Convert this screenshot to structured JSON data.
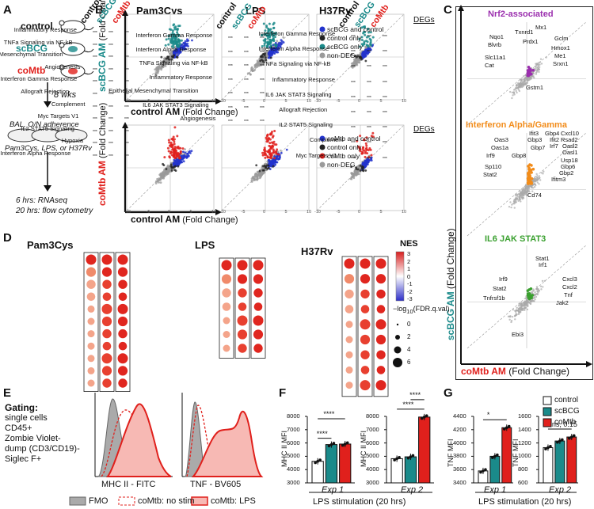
{
  "panels": {
    "A": "A",
    "B": "B",
    "C": "C",
    "D": "D",
    "E": "E",
    "F": "F",
    "G": "G"
  },
  "panel_a": {
    "mice": [
      "control",
      "scBCG",
      "coMtb"
    ],
    "duration": "8 wks",
    "step1": "BAL, O/N adherence",
    "step2": "Pam3Cys, LPS, or H37Rv",
    "out1": "6 hrs: RNAseq",
    "out2": "20 hrs: flow cytometry"
  },
  "panel_b": {
    "stims": [
      "Pam3Cys",
      "LPS",
      "H37Rv"
    ],
    "row1_ylabel_bold": "scBCG AM",
    "row2_ylabel_bold": "coMtb AM",
    "fold_change": "(Fold Change)",
    "xlabel_bold": "control AM",
    "legend_title": "DEGs",
    "legend1": [
      "scBCG and control",
      "control only",
      "scBCG only",
      "non-DEG"
    ],
    "legend2": [
      "coMtb and control",
      "control only",
      "coMtb only",
      "non-DEG"
    ],
    "ticks_x": [
      "-10",
      "-5",
      "0",
      "5",
      "10"
    ],
    "ticks_y": [
      "10",
      "5",
      "0",
      "-5",
      "-10"
    ]
  },
  "panel_c": {
    "sub1_title": "Nrf2-associated",
    "sub1_genes": [
      "Mx1",
      "Nqo1",
      "Txnrd1",
      "Blvrb",
      "Prdx1",
      "Gclm",
      "Hmox1",
      "Slc11a1",
      "Me1",
      "Srxn1",
      "Cat",
      "Gstm1"
    ],
    "sub2_title": "Interferon Alpha/Gamma",
    "sub2_genes": [
      "Ifit3",
      "Gbp4",
      "Cxcl10",
      "Oas3",
      "Gbp3",
      "Ifit2",
      "Rsad2",
      "Oas1a",
      "Gbp7",
      "Irf7",
      "Oasl2",
      "Irf9",
      "Gbp8",
      "Oasl1",
      "Sp110",
      "Usp18",
      "Stat2",
      "Gbp6",
      "Cd74",
      "Ifitm3",
      "Gbp2"
    ],
    "sub3_title": "IL6 JAK STAT3",
    "sub3_genes": [
      "Stat1",
      "Irf1",
      "Irf9",
      "Cxcl3",
      "Stat2",
      "Cxcl2",
      "Tnfrsf1b",
      "Tnf",
      "Jak2",
      "Ebi3"
    ],
    "ylabel_bold": "scBCG AM",
    "xlabel_bold": "coMtb AM",
    "fold_change": "(Fold Change)"
  },
  "panel_d": {
    "columns": [
      "control",
      "scBCG",
      "coMtb"
    ],
    "pam3cys": {
      "title": "Pam3Cys",
      "rows": [
        "Inflammatory Response",
        "TNFa Signaling via NF-kB",
        "Epithelial Mesenchymal Transition",
        "Angiogenesis",
        "Interferon Gamma Response",
        "Allograft Rejection",
        "Complement",
        "Myc Targets V1",
        "IL2 STAT5 Signaling",
        "Hypoxia",
        "Interferon Alpha Response"
      ]
    },
    "lps": {
      "title": "LPS",
      "rows": [
        "Interferon Gamma Response",
        "Interferon Alpha Response",
        "TNFa Signaling via NF-kB",
        "Inflammatory Response",
        "Epithelial Mesenchymal Transition",
        "IL6 JAK STAT3 Signaling",
        "Angiogenesis"
      ]
    },
    "h37rv": {
      "title": "H37Rv",
      "rows": [
        "Interferon Gamma Response",
        "Interferon Alpha Response",
        "TNFa Signaling via NF-kB",
        "Inflammatory Response",
        "IL6 JAK STAT3 Signaling",
        "Allograft Rejection",
        "IL2 STAT5 Signaling",
        "Complement",
        "Myc Targets V1"
      ]
    },
    "nes_title": "NES",
    "nes_ticks": [
      "3",
      "2",
      "1",
      "0",
      "-1",
      "-2",
      "-3"
    ],
    "size_title": "-log10(FDR.q.val)",
    "size_ticks": [
      "0",
      "2",
      "4",
      "6"
    ],
    "stars": "***"
  },
  "panel_e": {
    "gating_title": "Gating:",
    "gating_lines": [
      "single cells",
      "CD45+",
      "Zombie Violet-",
      "dump (CD3/CD19)-",
      "Siglec F+"
    ],
    "x1": "MHC II - FITC",
    "x2": "TNF - BV605",
    "legend": [
      "FMO",
      "coMtb: no stim",
      "coMtb: LPS"
    ]
  },
  "panel_f": {
    "ylabel": "MHC II MFI",
    "exp1": "Exp 1",
    "exp2": "Exp 2",
    "ticks1": [
      "8000",
      "7000",
      "6000",
      "5000",
      "4000",
      "3000"
    ],
    "ticks2": [
      "8000",
      "7000",
      "6000",
      "5000",
      "4000",
      "3000"
    ],
    "sig": "****",
    "footer": "LPS stimulation (20 hrs)"
  },
  "panel_g": {
    "ylabel": "TNF MFI",
    "exp1": "Exp 1",
    "exp2": "Exp 2",
    "ticks1": [
      "4400",
      "4200",
      "4000",
      "3800",
      "3600",
      "3400"
    ],
    "ticks2": [
      "1600",
      "1400",
      "1200",
      "1000",
      "800",
      "600"
    ],
    "sig1": "*",
    "sig2": "ns, 0.15",
    "footer": "LPS stimulation (20 hrs)"
  },
  "legend_fg": [
    "control",
    "scBCG",
    "coMtb"
  ],
  "colors": {
    "control": "#ffffff",
    "scbcg": "#1a8a8a",
    "comtb": "#e0201c",
    "blue": "#2233cc",
    "grey": "#9a9a9a",
    "purple": "#9b2fae",
    "orange": "#f28c1a",
    "green": "#3aa02f"
  },
  "chart_data": [
    {
      "type": "bar",
      "title": "Exp 1",
      "ylabel": "MHC II MFI",
      "categories": [
        "control",
        "scBCG",
        "coMtb"
      ],
      "values": [
        4620,
        5880,
        5920
      ],
      "ylim": [
        3000,
        8000
      ]
    },
    {
      "type": "bar",
      "title": "Exp 2",
      "ylabel": "MHC II MFI",
      "categories": [
        "control",
        "scBCG",
        "coMtb"
      ],
      "values": [
        4820,
        4960,
        7950
      ],
      "ylim": [
        3000,
        8000
      ]
    },
    {
      "type": "bar",
      "title": "Exp 1",
      "ylabel": "TNF MFI",
      "categories": [
        "control",
        "scBCG",
        "coMtb"
      ],
      "values": [
        3580,
        3800,
        4230
      ],
      "ylim": [
        3400,
        4400
      ]
    },
    {
      "type": "bar",
      "title": "Exp 2",
      "ylabel": "TNF MFI",
      "categories": [
        "control",
        "scBCG",
        "coMtb"
      ],
      "values": [
        1130,
        1230,
        1290
      ],
      "ylim": [
        600,
        1600
      ]
    }
  ]
}
